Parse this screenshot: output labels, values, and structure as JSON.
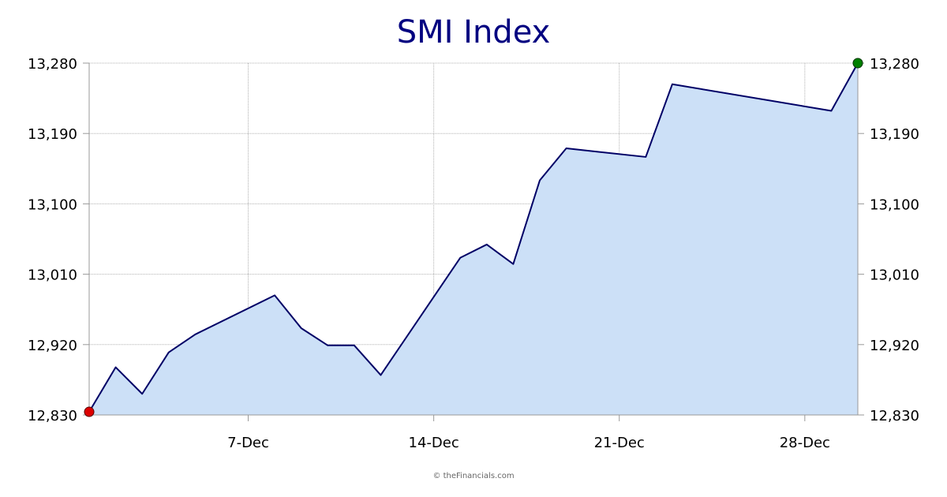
{
  "credit": "© theFinancials.com",
  "chart_data": {
    "type": "area",
    "title": "SMI Index",
    "xlabel": "",
    "ylabel": "",
    "x_tick_labels": [
      "7-Dec",
      "14-Dec",
      "21-Dec",
      "28-Dec"
    ],
    "x_tick_dates": [
      "2020-12-07",
      "2020-12-14",
      "2020-12-21",
      "2020-12-28"
    ],
    "xlim": [
      "2020-12-01",
      "2020-12-30"
    ],
    "ylim": [
      12830,
      13280
    ],
    "y_ticks": [
      12830,
      12920,
      13010,
      13100,
      13190,
      13280
    ],
    "y_tick_labels": [
      "12,830",
      "12,920",
      "13,010",
      "13,100",
      "13,190",
      "13,280"
    ],
    "grid": true,
    "colors": {
      "line": "#000066",
      "fill": "#cce0f7",
      "start_marker": "#dd0000",
      "end_marker": "#008000",
      "title": "#000080"
    },
    "series": [
      {
        "x": [
          "2020-12-01",
          "2020-12-02",
          "2020-12-03",
          "2020-12-04",
          "2020-12-05",
          "2020-12-08",
          "2020-12-09",
          "2020-12-10",
          "2020-12-11",
          "2020-12-12",
          "2020-12-15",
          "2020-12-16",
          "2020-12-17",
          "2020-12-18",
          "2020-12-19",
          "2020-12-22",
          "2020-12-23",
          "2020-12-29",
          "2020-12-30"
        ],
        "values": [
          12834,
          12891,
          12857,
          12910,
          12933,
          12983,
          12941,
          12919,
          12919,
          12881,
          13031,
          13048,
          13023,
          13130,
          13171,
          13160,
          13253,
          13219,
          13280
        ]
      }
    ]
  }
}
